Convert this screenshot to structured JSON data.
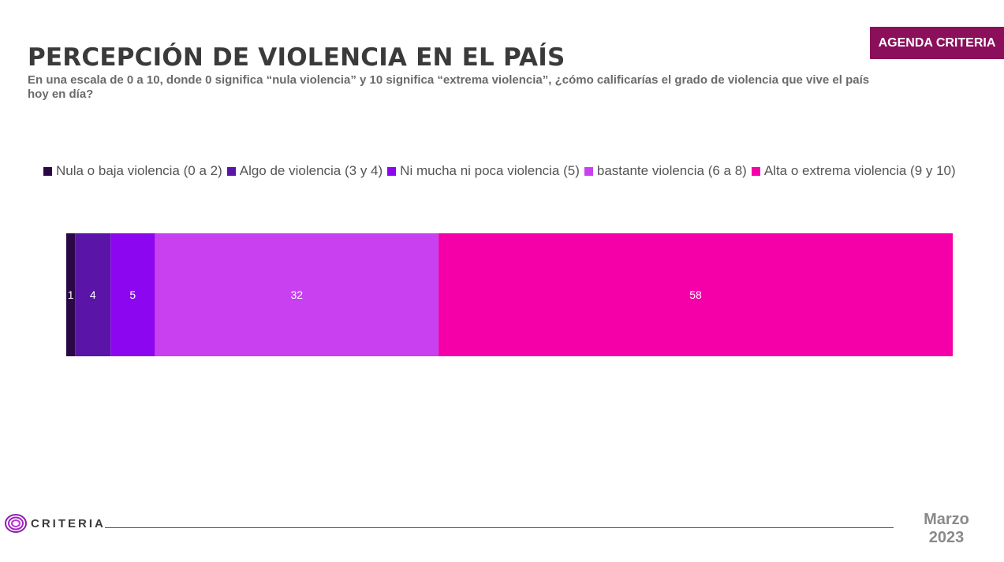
{
  "header": {
    "badge": "AGENDA CRITERIA",
    "title": "PERCEPCIÓN DE VIOLENCIA EN EL PAÍS",
    "subtitle": "En una escala de 0 a 10, donde 0 significa “nula violencia” y 10 significa “extrema violencia”, ¿cómo calificarías el grado de violencia que vive el país hoy en día?"
  },
  "footer": {
    "logo_text": "CRITERIA",
    "date_month": "Marzo",
    "date_year": "2023"
  },
  "colors": {
    "badge": "#8b0f5a",
    "title": "#3a3a3a"
  },
  "chart_data": {
    "type": "bar",
    "orientation": "horizontal-stacked-100",
    "series": [
      {
        "name": "Nula o baja violencia (0 a 2)",
        "value": 1,
        "color": "#2a0845"
      },
      {
        "name": "Algo de violencia (3 y 4)",
        "value": 4,
        "color": "#5a14a8"
      },
      {
        "name": "Ni mucha ni poca violencia (5)",
        "value": 5,
        "color": "#8c07f0"
      },
      {
        "name": "bastante violencia (6 a 8)",
        "value": 32,
        "color": "#c840f0"
      },
      {
        "name": "Alta o extrema violencia (9 y 10)",
        "value": 58,
        "color": "#f500a8"
      }
    ],
    "legend_position": "top",
    "grid": false
  }
}
